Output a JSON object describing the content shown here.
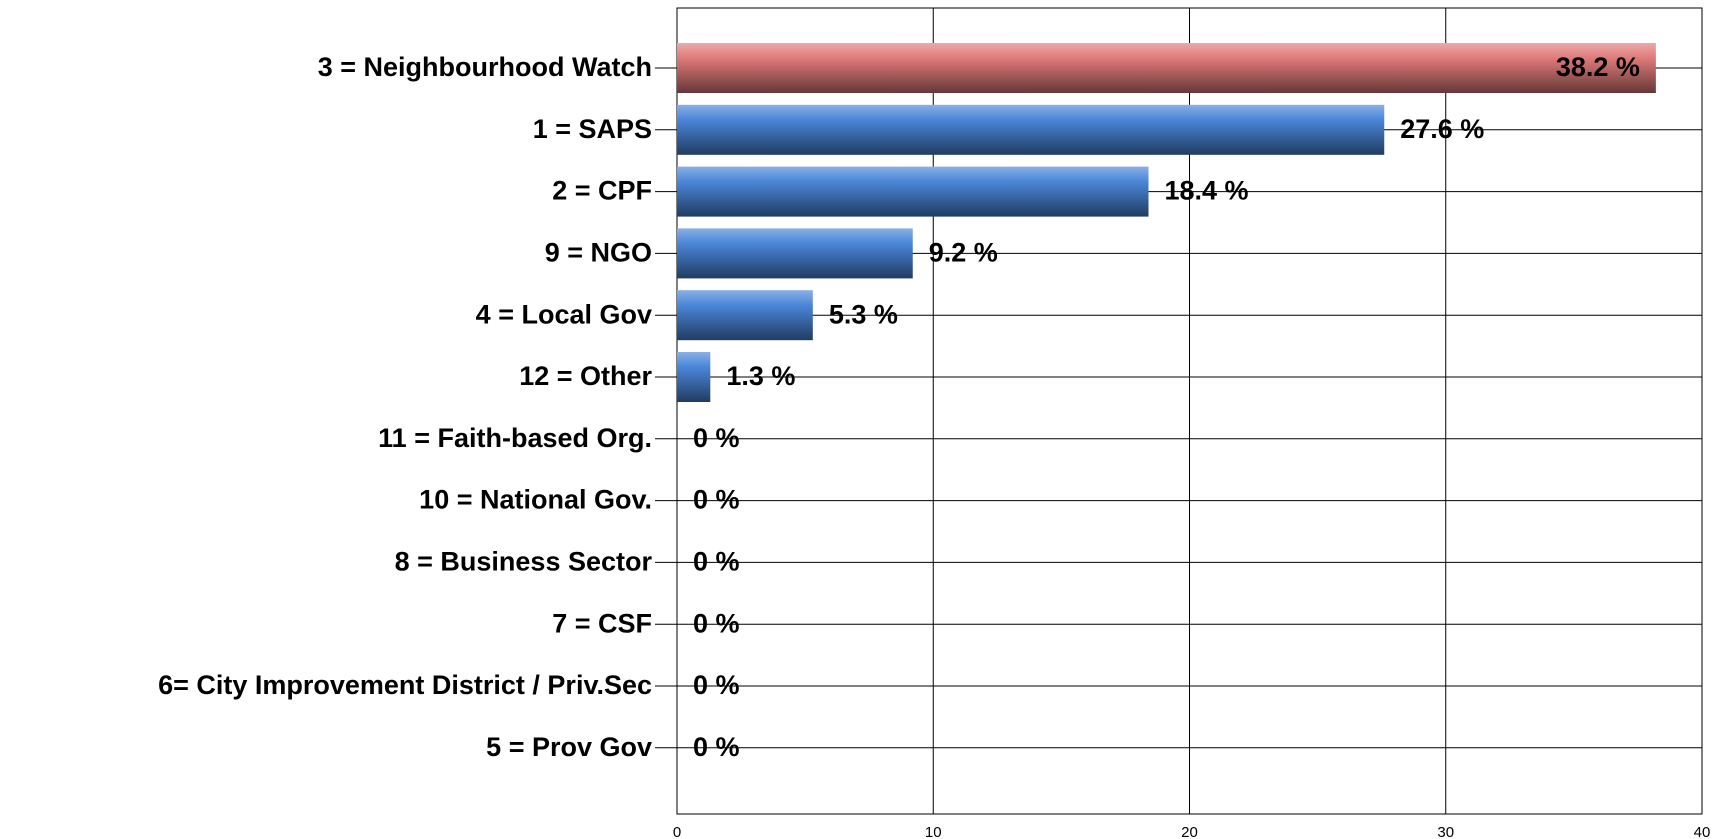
{
  "chart_data": {
    "type": "barh",
    "categories": [
      "3 = Neighbourhood Watch",
      "1 = SAPS",
      "2 = CPF",
      "9 = NGO",
      "4 = Local Gov",
      "12 = Other",
      "11 = Faith-based Org.",
      "10 = National Gov.",
      "8 = Business Sector",
      "7 = CSF",
      "6= City Improvement District / Priv.Sec",
      "5 = Prov Gov"
    ],
    "values": [
      38.2,
      27.6,
      18.4,
      9.2,
      5.3,
      1.3,
      0,
      0,
      0,
      0,
      0,
      0
    ],
    "value_labels": [
      "38.2 %",
      "27.6 %",
      "18.4 %",
      "9.2 %",
      "5.3 %",
      "1.3 %",
      "0 %",
      "0 %",
      "0 %",
      "0 %",
      "0 %",
      "0 %"
    ],
    "colors": [
      "#e07a7a",
      "#4a86d8",
      "#4a86d8",
      "#4a86d8",
      "#4a86d8",
      "#4a86d8",
      "#4a86d8",
      "#4a86d8",
      "#4a86d8",
      "#4a86d8",
      "#4a86d8",
      "#4a86d8"
    ],
    "xlim": [
      0,
      40
    ],
    "xticks": [
      0,
      10,
      20,
      30,
      40
    ],
    "grid": true
  }
}
